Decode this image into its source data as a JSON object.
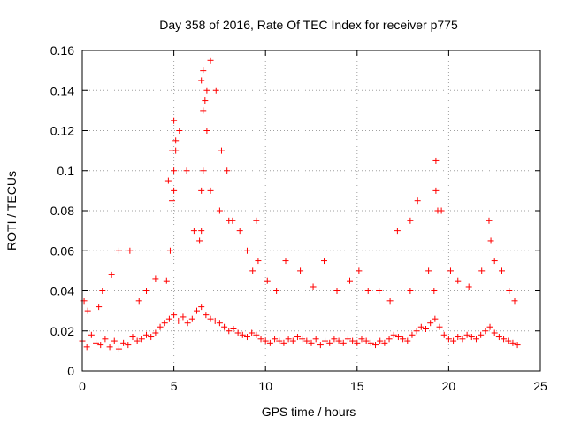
{
  "chart_data": {
    "type": "scatter",
    "title": "Day 358 of 2016, Rate Of TEC Index for receiver p775",
    "xlabel": "GPS time / hours",
    "ylabel": "ROTI / TECUs",
    "xlim": [
      0,
      25
    ],
    "ylim": [
      0,
      0.16
    ],
    "xticks": [
      0,
      5,
      10,
      15,
      20,
      25
    ],
    "xtick_labels": [
      "0",
      "5",
      "10",
      "15",
      "20",
      "25"
    ],
    "yticks": [
      0,
      0.02,
      0.04,
      0.06,
      0.08,
      0.1,
      0.12,
      0.14,
      0.16
    ],
    "ytick_labels": [
      "0",
      "0.02",
      "0.04",
      "0.06",
      "0.08",
      "0.1",
      "0.12",
      "0.14",
      "0.16"
    ],
    "grid": true,
    "marker": "+",
    "color": "#ff0000",
    "series": [
      {
        "name": "ROTI",
        "x": [
          0.0,
          0.25,
          0.5,
          0.75,
          1.0,
          1.25,
          1.5,
          1.75,
          2.0,
          2.25,
          2.5,
          2.75,
          3.0,
          3.25,
          3.5,
          3.75,
          4.0,
          4.25,
          4.5,
          4.75,
          5.0,
          5.25,
          5.5,
          5.75,
          6.0,
          6.25,
          6.5,
          6.75,
          7.0,
          7.25,
          7.5,
          7.75,
          8.0,
          8.25,
          8.5,
          8.75,
          9.0,
          9.25,
          9.5,
          9.75,
          10.0,
          10.25,
          10.5,
          10.75,
          11.0,
          11.25,
          11.5,
          11.75,
          12.0,
          12.25,
          12.5,
          12.75,
          13.0,
          13.25,
          13.5,
          13.75,
          14.0,
          14.25,
          14.5,
          14.75,
          15.0,
          15.25,
          15.5,
          15.75,
          16.0,
          16.25,
          16.5,
          16.75,
          17.0,
          17.25,
          17.5,
          17.75,
          18.0,
          18.25,
          18.5,
          18.75,
          19.0,
          19.25,
          19.5,
          19.75,
          20.0,
          20.25,
          20.5,
          20.75,
          21.0,
          21.25,
          21.5,
          21.75,
          22.0,
          22.25,
          22.5,
          22.75,
          23.0,
          23.25,
          23.5,
          23.75,
          0.1,
          0.3,
          0.9,
          1.1,
          1.6,
          2.0,
          2.6,
          3.1,
          3.5,
          4.0,
          4.6,
          4.8,
          4.9,
          5.0,
          5.1,
          5.3,
          5.7,
          6.1,
          6.4,
          6.5,
          6.6,
          6.8,
          7.0,
          7.3,
          7.6,
          7.9,
          8.2,
          8.6,
          9.0,
          9.3,
          9.6,
          10.1,
          10.6,
          11.1,
          11.9,
          12.6,
          13.2,
          13.9,
          14.6,
          15.1,
          15.6,
          16.2,
          16.8,
          17.2,
          17.9,
          18.3,
          18.9,
          19.2,
          19.3,
          19.6,
          20.1,
          20.5,
          21.1,
          21.8,
          22.2,
          22.5,
          22.9,
          23.3,
          23.6,
          4.7,
          4.9,
          5.0,
          5.1,
          5.0,
          6.5,
          6.6,
          6.7,
          6.8,
          6.6,
          6.5,
          7.0,
          7.5,
          8.0,
          9.5,
          17.9,
          19.3,
          19.4,
          22.3
        ],
        "y": [
          0.015,
          0.012,
          0.018,
          0.014,
          0.013,
          0.016,
          0.012,
          0.015,
          0.011,
          0.014,
          0.013,
          0.017,
          0.015,
          0.016,
          0.018,
          0.017,
          0.019,
          0.022,
          0.024,
          0.026,
          0.028,
          0.025,
          0.027,
          0.024,
          0.026,
          0.03,
          0.032,
          0.028,
          0.026,
          0.025,
          0.024,
          0.022,
          0.02,
          0.021,
          0.019,
          0.018,
          0.017,
          0.019,
          0.018,
          0.016,
          0.015,
          0.014,
          0.016,
          0.015,
          0.014,
          0.016,
          0.015,
          0.017,
          0.016,
          0.015,
          0.014,
          0.016,
          0.013,
          0.015,
          0.014,
          0.016,
          0.015,
          0.014,
          0.016,
          0.015,
          0.014,
          0.016,
          0.015,
          0.014,
          0.013,
          0.015,
          0.014,
          0.016,
          0.018,
          0.017,
          0.016,
          0.015,
          0.018,
          0.02,
          0.022,
          0.021,
          0.024,
          0.026,
          0.022,
          0.018,
          0.016,
          0.015,
          0.017,
          0.016,
          0.018,
          0.017,
          0.016,
          0.018,
          0.02,
          0.022,
          0.019,
          0.017,
          0.016,
          0.015,
          0.014,
          0.013,
          0.035,
          0.03,
          0.032,
          0.04,
          0.048,
          0.06,
          0.06,
          0.035,
          0.04,
          0.046,
          0.045,
          0.06,
          0.085,
          0.09,
          0.11,
          0.12,
          0.1,
          0.07,
          0.065,
          0.07,
          0.13,
          0.14,
          0.155,
          0.14,
          0.11,
          0.1,
          0.075,
          0.07,
          0.06,
          0.05,
          0.055,
          0.045,
          0.04,
          0.055,
          0.05,
          0.042,
          0.055,
          0.04,
          0.045,
          0.05,
          0.04,
          0.04,
          0.035,
          0.07,
          0.04,
          0.085,
          0.05,
          0.04,
          0.105,
          0.08,
          0.05,
          0.045,
          0.042,
          0.05,
          0.075,
          0.055,
          0.05,
          0.04,
          0.035,
          0.095,
          0.11,
          0.125,
          0.115,
          0.1,
          0.145,
          0.15,
          0.135,
          0.12,
          0.1,
          0.09,
          0.09,
          0.08,
          0.075,
          0.075,
          0.075,
          0.09,
          0.08,
          0.065
        ]
      }
    ]
  }
}
